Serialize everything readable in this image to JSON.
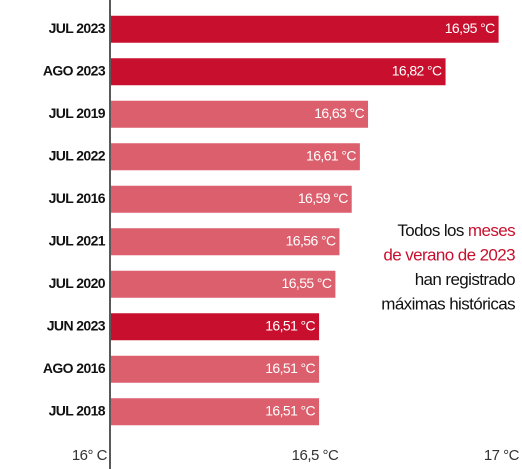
{
  "chart_data": {
    "type": "bar",
    "orientation": "horizontal",
    "categories": [
      "JUL 2023",
      "AGO 2023",
      "JUL 2019",
      "JUL 2022",
      "JUL 2016",
      "JUL 2021",
      "JUL 2020",
      "JUN 2023",
      "AGO 2016",
      "JUL 2018"
    ],
    "values": [
      16.95,
      16.82,
      16.63,
      16.61,
      16.59,
      16.56,
      16.55,
      16.51,
      16.51,
      16.51
    ],
    "value_labels": [
      "16,95 °C",
      "16,82 °C",
      "16,63 °C",
      "16,61 °C",
      "16,59 °C",
      "16,56 °C",
      "16,55 °C",
      "16,51 °C",
      "16,51 °C",
      "16,51 °C"
    ],
    "colors": [
      "#c8102e",
      "#c8102e",
      "#db5f6c",
      "#db5f6c",
      "#db5f6c",
      "#db5f6c",
      "#db5f6c",
      "#c8102e",
      "#db5f6c",
      "#db5f6c"
    ],
    "xlim": [
      16,
      17
    ],
    "xticks": [
      {
        "value": 16,
        "label": "16° C"
      },
      {
        "value": 16.5,
        "label": "16,5 °C"
      },
      {
        "value": 17,
        "label": "17 °C"
      }
    ],
    "annotation": [
      [
        {
          "text": "Todos los ",
          "color": "#111111"
        },
        {
          "text": "meses",
          "color": "#c8102e"
        }
      ],
      [
        {
          "text": "de verano de 2023",
          "color": "#c8102e"
        }
      ],
      [
        {
          "text": "han registrado",
          "color": "#111111"
        }
      ],
      [
        {
          "text": "máximas históricas",
          "color": "#111111"
        }
      ]
    ]
  }
}
